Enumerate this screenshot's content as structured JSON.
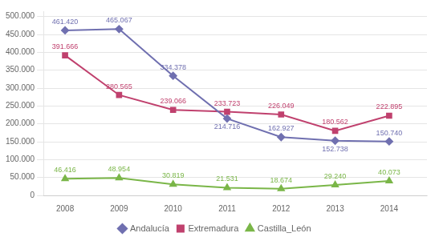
{
  "chart_data": {
    "type": "line",
    "x": [
      2008,
      2009,
      2010,
      2011,
      2012,
      2013,
      2014
    ],
    "xlim": [
      2007.6,
      2014.7
    ],
    "xticks": [
      2008,
      2009,
      2010,
      2011,
      2012,
      2013,
      2014
    ],
    "ylim": [
      0,
      515000
    ],
    "yticks": [
      0,
      {
        "value": 50000,
        "label": "50.000"
      },
      {
        "value": 100000,
        "label": "100.000"
      },
      {
        "value": 150000,
        "label": "150.000"
      },
      {
        "value": 200000,
        "label": "200.000"
      },
      {
        "value": 250000,
        "label": "250.000"
      },
      {
        "value": 300000,
        "label": "300.000"
      },
      {
        "value": 350000,
        "label": "350.000"
      },
      {
        "value": 400000,
        "label": "400.000"
      },
      {
        "value": 450000,
        "label": "450.000"
      },
      {
        "value": 500000,
        "label": "500.000"
      }
    ],
    "grid": "y",
    "legend": "bottom",
    "data_labels": true,
    "series": [
      {
        "name": "Andalucía",
        "color": "#7070b0",
        "marker": "diamond",
        "values": [
          461420,
          465067,
          334378,
          214716,
          162927,
          152738,
          150740
        ],
        "value_labels": [
          "461.420",
          "465.067",
          "334.378",
          "214.716",
          "162.927",
          "152.738",
          "150.740"
        ]
      },
      {
        "name": "Extremadura",
        "color": "#c0416e",
        "marker": "square",
        "values": [
          391666,
          280565,
          239066,
          233723,
          226049,
          180562,
          222895
        ],
        "value_labels": [
          "391.666",
          "280.565",
          "239.066",
          "233.723",
          "226.049",
          "180.562",
          "222.895"
        ]
      },
      {
        "name": "Castilla_León",
        "color": "#7ab648",
        "marker": "triangle",
        "values": [
          46416,
          48954,
          30819,
          21531,
          18674,
          29240,
          40073
        ],
        "value_labels": [
          "46.416",
          "48.954",
          "30.819",
          "21.531",
          "18.674",
          "29.240",
          "40.073"
        ]
      }
    ]
  }
}
